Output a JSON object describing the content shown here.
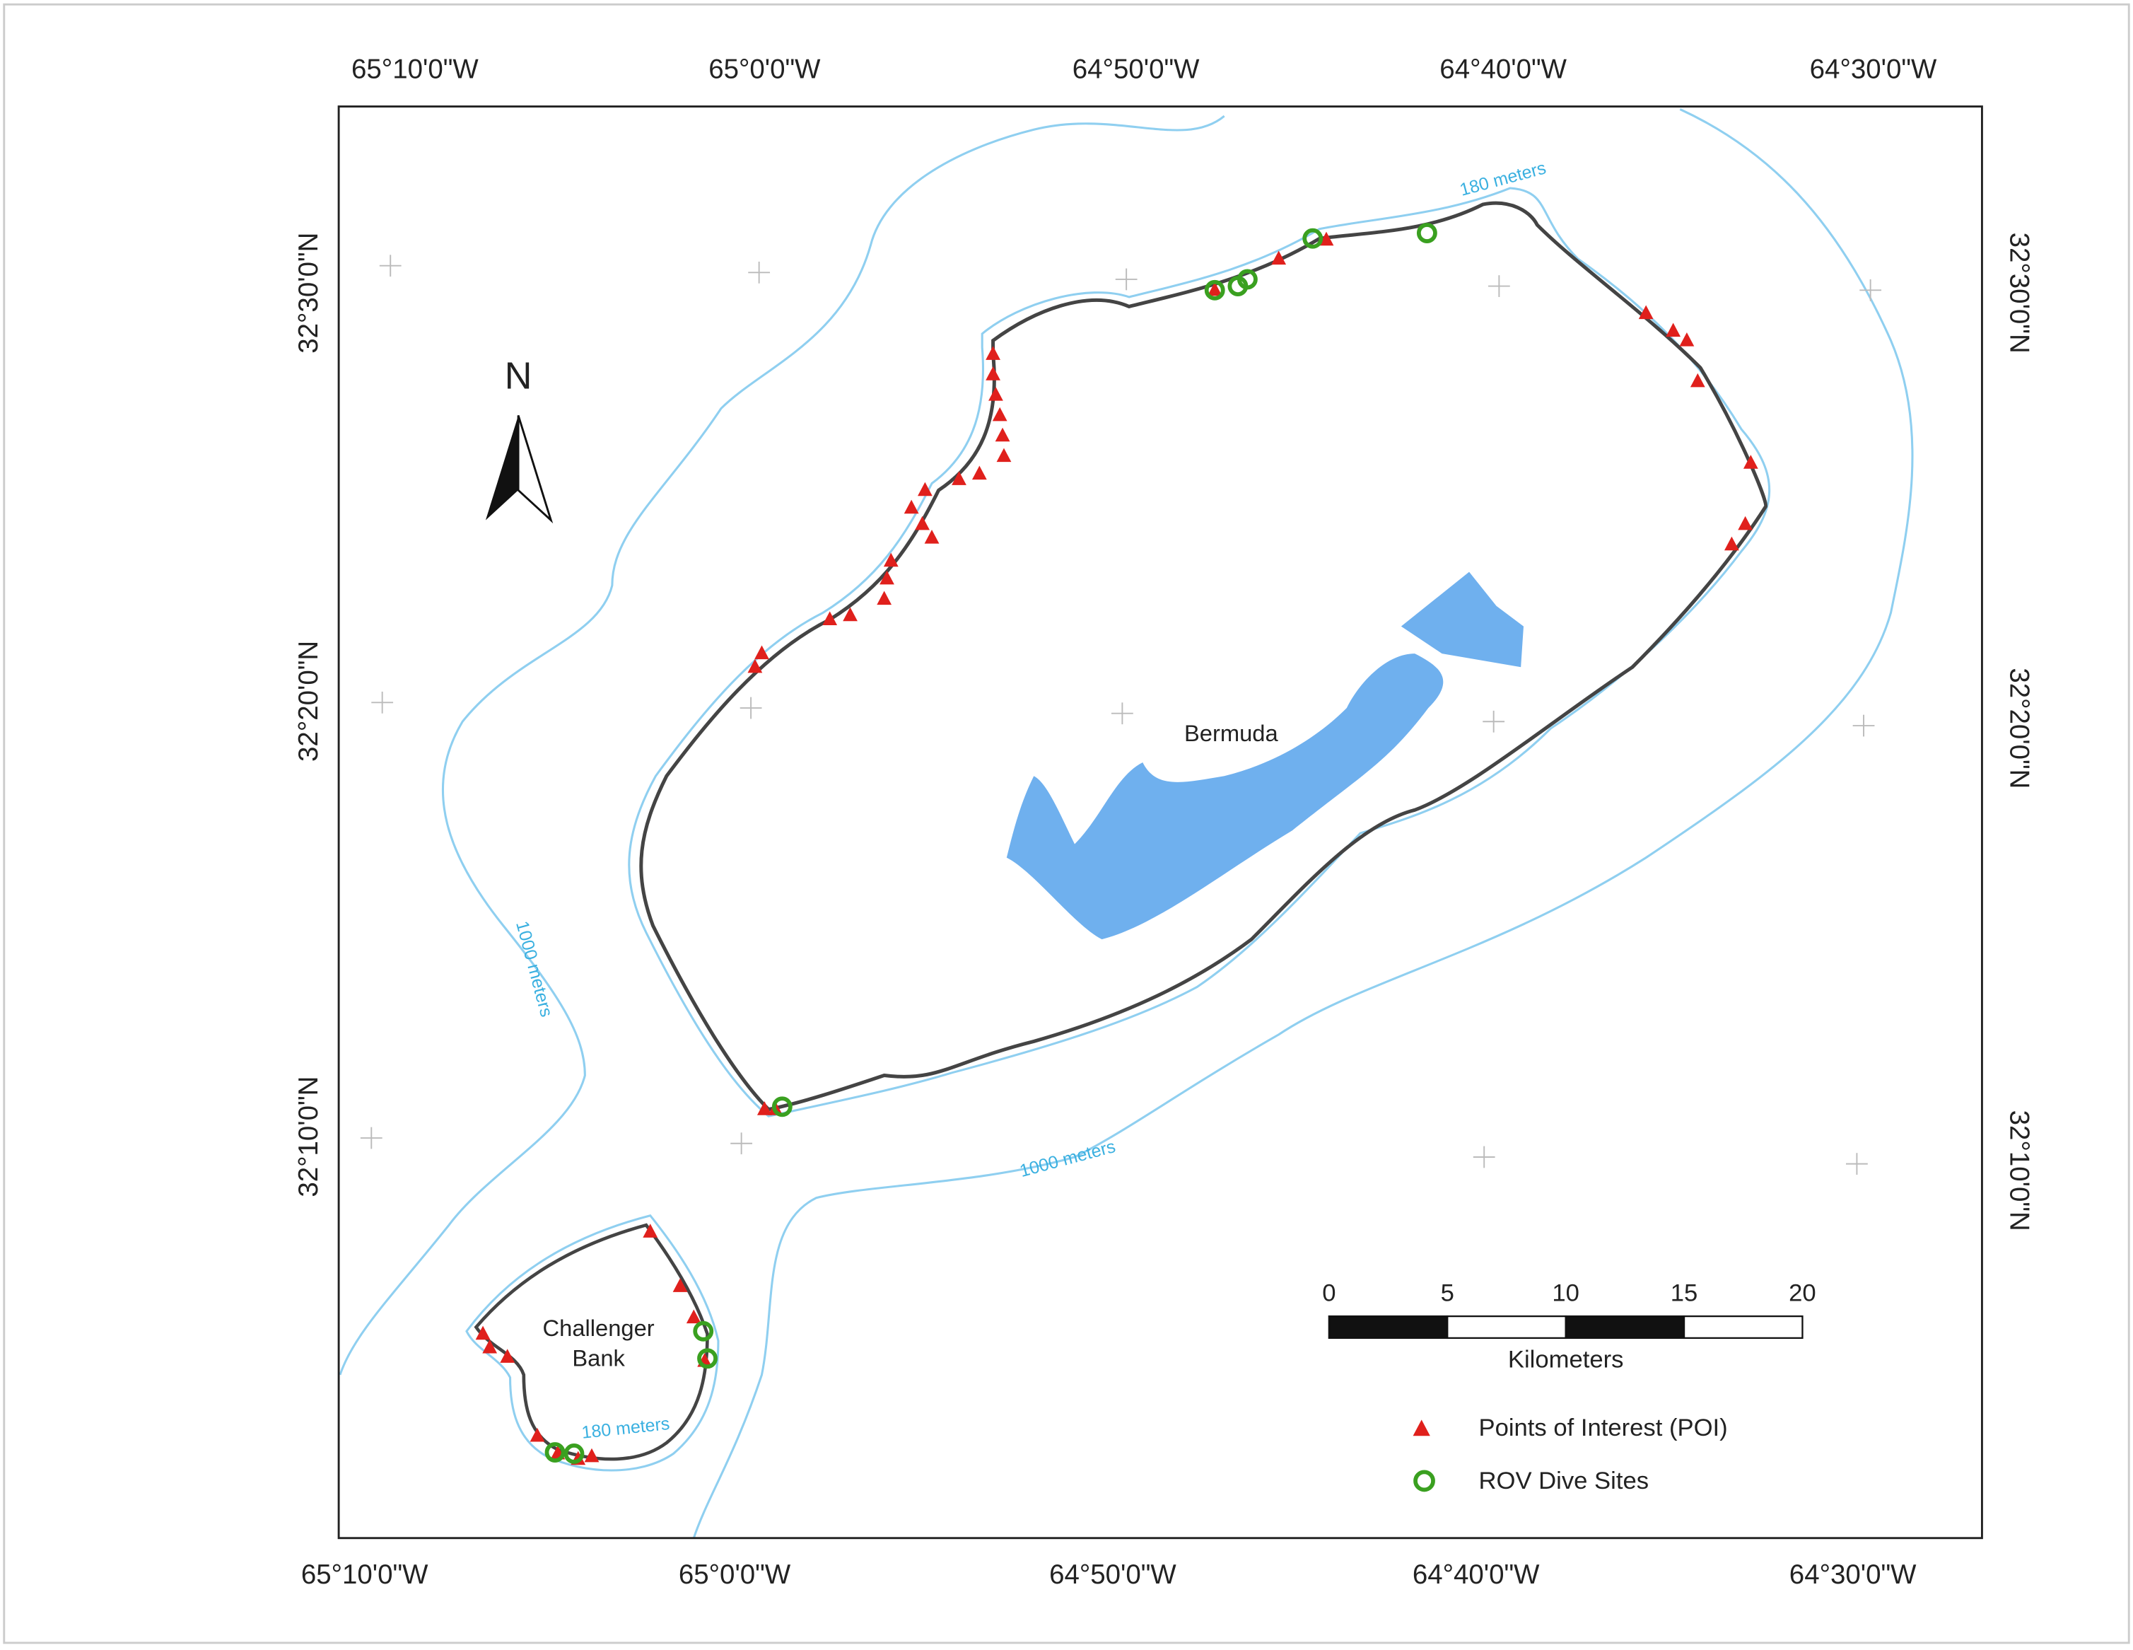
{
  "axis_labels": {
    "top": [
      "65°10'0\"W",
      "65°0'0\"W",
      "64°50'0\"W",
      "64°40'0\"W",
      "64°30'0\"W"
    ],
    "bottom": [
      "65°10'0\"W",
      "65°0'0\"W",
      "64°50'0\"W",
      "64°40'0\"W",
      "64°30'0\"W"
    ],
    "left": [
      "32°30'0\"N",
      "32°20'0\"N",
      "32°10'0\"N"
    ],
    "right": [
      "32°30'0\"N",
      "32°20'0\"N",
      "32°10'0\"N"
    ]
  },
  "north_label": "N",
  "place_labels": {
    "bermuda": "Bermuda",
    "challenger_bank": [
      "Challenger",
      "Bank"
    ]
  },
  "contour_labels": [
    "180 meters",
    "1000 meters",
    "1000 meters",
    "180 meters"
  ],
  "scale_bar": {
    "ticks": [
      0,
      5,
      10,
      15,
      20
    ],
    "unit": "Kilometers"
  },
  "legend": [
    {
      "label": "Points of Interest (POI)",
      "color": "#e0201c"
    },
    {
      "label": "ROV Dive Sites",
      "color": "#3aa020"
    }
  ]
}
